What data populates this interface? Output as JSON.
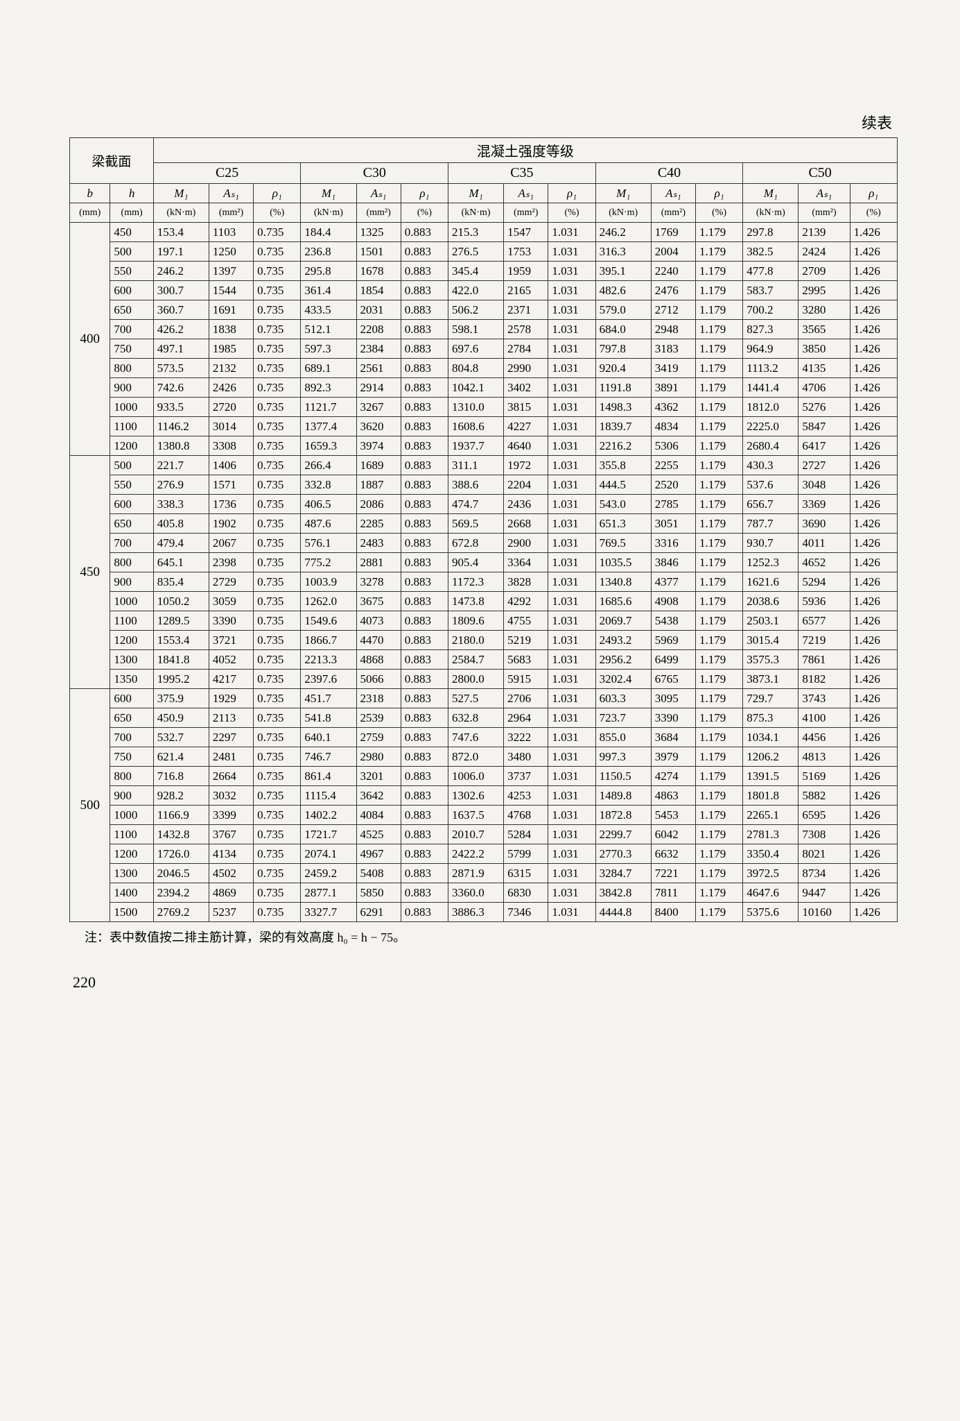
{
  "top_right_label": "续表",
  "header": {
    "beam_section": "梁截面",
    "grade_title": "混凝土强度等级",
    "grades": [
      "C25",
      "C30",
      "C35",
      "C40",
      "C50"
    ],
    "b": "b",
    "h": "h",
    "M1": "M₁",
    "As1": "Aₛ₁",
    "rho1": "ρ₁",
    "u_b": "(mm)",
    "u_h": "(mm)",
    "u_M": "(kN·m)",
    "u_A": "(mm²)",
    "u_rho": "(%)"
  },
  "groups": [
    {
      "b": 400,
      "h_vals": [
        450,
        500,
        550,
        600,
        650,
        700,
        750,
        800,
        900,
        1000,
        1100,
        1200
      ],
      "rows": [
        [
          153.4,
          1103,
          "0.735",
          184.4,
          1325,
          "0.883",
          215.3,
          1547,
          "1.031",
          246.2,
          1769,
          "1.179",
          297.8,
          2139,
          "1.426"
        ],
        [
          197.1,
          1250,
          "0.735",
          236.8,
          1501,
          "0.883",
          276.5,
          1753,
          "1.031",
          316.3,
          2004,
          "1.179",
          382.5,
          2424,
          "1.426"
        ],
        [
          246.2,
          1397,
          "0.735",
          295.8,
          1678,
          "0.883",
          345.4,
          1959,
          "1.031",
          395.1,
          2240,
          "1.179",
          477.8,
          2709,
          "1.426"
        ],
        [
          300.7,
          1544,
          "0.735",
          361.4,
          1854,
          "0.883",
          422.0,
          2165,
          "1.031",
          482.6,
          2476,
          "1.179",
          583.7,
          2995,
          "1.426"
        ],
        [
          360.7,
          1691,
          "0.735",
          433.5,
          2031,
          "0.883",
          506.2,
          2371,
          "1.031",
          579.0,
          2712,
          "1.179",
          700.2,
          3280,
          "1.426"
        ],
        [
          426.2,
          1838,
          "0.735",
          512.1,
          2208,
          "0.883",
          598.1,
          2578,
          "1.031",
          684.0,
          2948,
          "1.179",
          827.3,
          3565,
          "1.426"
        ],
        [
          497.1,
          1985,
          "0.735",
          597.3,
          2384,
          "0.883",
          697.6,
          2784,
          "1.031",
          797.8,
          3183,
          "1.179",
          964.9,
          3850,
          "1.426"
        ],
        [
          573.5,
          2132,
          "0.735",
          689.1,
          2561,
          "0.883",
          804.8,
          2990,
          "1.031",
          920.4,
          3419,
          "1.179",
          1113.2,
          4135,
          "1.426"
        ],
        [
          742.6,
          2426,
          "0.735",
          892.3,
          2914,
          "0.883",
          1042.1,
          3402,
          "1.031",
          1191.8,
          3891,
          "1.179",
          1441.4,
          4706,
          "1.426"
        ],
        [
          933.5,
          2720,
          "0.735",
          1121.7,
          3267,
          "0.883",
          1310.0,
          3815,
          "1.031",
          1498.3,
          4362,
          "1.179",
          1812.0,
          5276,
          "1.426"
        ],
        [
          1146.2,
          3014,
          "0.735",
          1377.4,
          3620,
          "0.883",
          1608.6,
          4227,
          "1.031",
          1839.7,
          4834,
          "1.179",
          2225.0,
          5847,
          "1.426"
        ],
        [
          1380.8,
          3308,
          "0.735",
          1659.3,
          3974,
          "0.883",
          1937.7,
          4640,
          "1.031",
          2216.2,
          5306,
          "1.179",
          2680.4,
          6417,
          "1.426"
        ]
      ]
    },
    {
      "b": 450,
      "h_vals": [
        500,
        550,
        600,
        650,
        700,
        800,
        900,
        1000,
        1100,
        1200,
        1300,
        1350
      ],
      "rows": [
        [
          221.7,
          1406,
          "0.735",
          266.4,
          1689,
          "0.883",
          311.1,
          1972,
          "1.031",
          355.8,
          2255,
          "1.179",
          430.3,
          2727,
          "1.426"
        ],
        [
          276.9,
          1571,
          "0.735",
          332.8,
          1887,
          "0.883",
          388.6,
          2204,
          "1.031",
          444.5,
          2520,
          "1.179",
          537.6,
          3048,
          "1.426"
        ],
        [
          338.3,
          1736,
          "0.735",
          406.5,
          2086,
          "0.883",
          474.7,
          2436,
          "1.031",
          543.0,
          2785,
          "1.179",
          656.7,
          3369,
          "1.426"
        ],
        [
          405.8,
          1902,
          "0.735",
          487.6,
          2285,
          "0.883",
          569.5,
          2668,
          "1.031",
          651.3,
          3051,
          "1.179",
          787.7,
          3690,
          "1.426"
        ],
        [
          479.4,
          2067,
          "0.735",
          576.1,
          2483,
          "0.883",
          672.8,
          2900,
          "1.031",
          769.5,
          3316,
          "1.179",
          930.7,
          4011,
          "1.426"
        ],
        [
          645.1,
          2398,
          "0.735",
          775.2,
          2881,
          "0.883",
          905.4,
          3364,
          "1.031",
          1035.5,
          3846,
          "1.179",
          1252.3,
          4652,
          "1.426"
        ],
        [
          835.4,
          2729,
          "0.735",
          1003.9,
          3278,
          "0.883",
          1172.3,
          3828,
          "1.031",
          1340.8,
          4377,
          "1.179",
          1621.6,
          5294,
          "1.426"
        ],
        [
          1050.2,
          3059,
          "0.735",
          1262.0,
          3675,
          "0.883",
          1473.8,
          4292,
          "1.031",
          1685.6,
          4908,
          "1.179",
          2038.6,
          5936,
          "1.426"
        ],
        [
          1289.5,
          3390,
          "0.735",
          1549.6,
          4073,
          "0.883",
          1809.6,
          4755,
          "1.031",
          2069.7,
          5438,
          "1.179",
          2503.1,
          6577,
          "1.426"
        ],
        [
          1553.4,
          3721,
          "0.735",
          1866.7,
          4470,
          "0.883",
          2180.0,
          5219,
          "1.031",
          2493.2,
          5969,
          "1.179",
          3015.4,
          7219,
          "1.426"
        ],
        [
          1841.8,
          4052,
          "0.735",
          2213.3,
          4868,
          "0.883",
          2584.7,
          5683,
          "1.031",
          2956.2,
          6499,
          "1.179",
          3575.3,
          7861,
          "1.426"
        ],
        [
          1995.2,
          4217,
          "0.735",
          2397.6,
          5066,
          "0.883",
          2800.0,
          5915,
          "1.031",
          3202.4,
          6765,
          "1.179",
          3873.1,
          8182,
          "1.426"
        ]
      ]
    },
    {
      "b": 500,
      "h_vals": [
        600,
        650,
        700,
        750,
        800,
        900,
        1000,
        1100,
        1200,
        1300,
        1400,
        1500
      ],
      "rows": [
        [
          375.9,
          1929,
          "0.735",
          451.7,
          2318,
          "0.883",
          527.5,
          2706,
          "1.031",
          603.3,
          3095,
          "1.179",
          729.7,
          3743,
          "1.426"
        ],
        [
          450.9,
          2113,
          "0.735",
          541.8,
          2539,
          "0.883",
          632.8,
          2964,
          "1.031",
          723.7,
          3390,
          "1.179",
          875.3,
          4100,
          "1.426"
        ],
        [
          532.7,
          2297,
          "0.735",
          640.1,
          2759,
          "0.883",
          747.6,
          3222,
          "1.031",
          855.0,
          3684,
          "1.179",
          1034.1,
          4456,
          "1.426"
        ],
        [
          621.4,
          2481,
          "0.735",
          746.7,
          2980,
          "0.883",
          872.0,
          3480,
          "1.031",
          997.3,
          3979,
          "1.179",
          1206.2,
          4813,
          "1.426"
        ],
        [
          716.8,
          2664,
          "0.735",
          861.4,
          3201,
          "0.883",
          1006.0,
          3737,
          "1.031",
          1150.5,
          4274,
          "1.179",
          1391.5,
          5169,
          "1.426"
        ],
        [
          928.2,
          3032,
          "0.735",
          1115.4,
          3642,
          "0.883",
          1302.6,
          4253,
          "1.031",
          1489.8,
          4863,
          "1.179",
          1801.8,
          5882,
          "1.426"
        ],
        [
          1166.9,
          3399,
          "0.735",
          1402.2,
          4084,
          "0.883",
          1637.5,
          4768,
          "1.031",
          1872.8,
          5453,
          "1.179",
          2265.1,
          6595,
          "1.426"
        ],
        [
          1432.8,
          3767,
          "0.735",
          1721.7,
          4525,
          "0.883",
          2010.7,
          5284,
          "1.031",
          2299.7,
          6042,
          "1.179",
          2781.3,
          7308,
          "1.426"
        ],
        [
          1726.0,
          4134,
          "0.735",
          2074.1,
          4967,
          "0.883",
          2422.2,
          5799,
          "1.031",
          2770.3,
          6632,
          "1.179",
          3350.4,
          8021,
          "1.426"
        ],
        [
          2046.5,
          4502,
          "0.735",
          2459.2,
          5408,
          "0.883",
          2871.9,
          6315,
          "1.031",
          3284.7,
          7221,
          "1.179",
          3972.5,
          8734,
          "1.426"
        ],
        [
          2394.2,
          4869,
          "0.735",
          2877.1,
          5850,
          "0.883",
          3360.0,
          6830,
          "1.031",
          3842.8,
          7811,
          "1.179",
          4647.6,
          9447,
          "1.426"
        ],
        [
          2769.2,
          5237,
          "0.735",
          3327.7,
          6291,
          "0.883",
          3886.3,
          7346,
          "1.031",
          4444.8,
          8400,
          "1.179",
          5375.6,
          10160,
          "1.426"
        ]
      ]
    }
  ],
  "note": "注：表中数值按二排主筋计算，梁的有效高度 h₀ = h − 75。",
  "page_number": "220"
}
